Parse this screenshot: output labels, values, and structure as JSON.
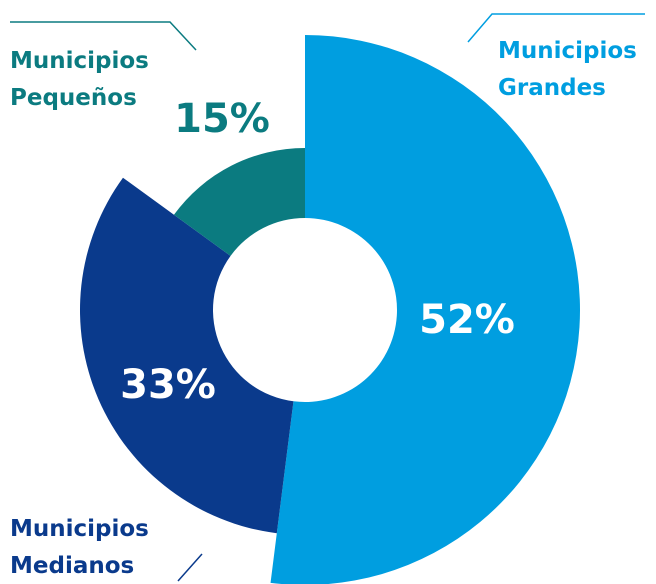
{
  "chart_data": {
    "type": "pie",
    "categories": [
      "Municipios Grandes",
      "Municipios Medianos",
      "Municipios Pequeños"
    ],
    "values": [
      52,
      33,
      15
    ],
    "value_labels": [
      "52%",
      "33%",
      "15%"
    ],
    "colors": [
      "#009ee0",
      "#0a3a8c",
      "#0b7b80"
    ]
  }
}
